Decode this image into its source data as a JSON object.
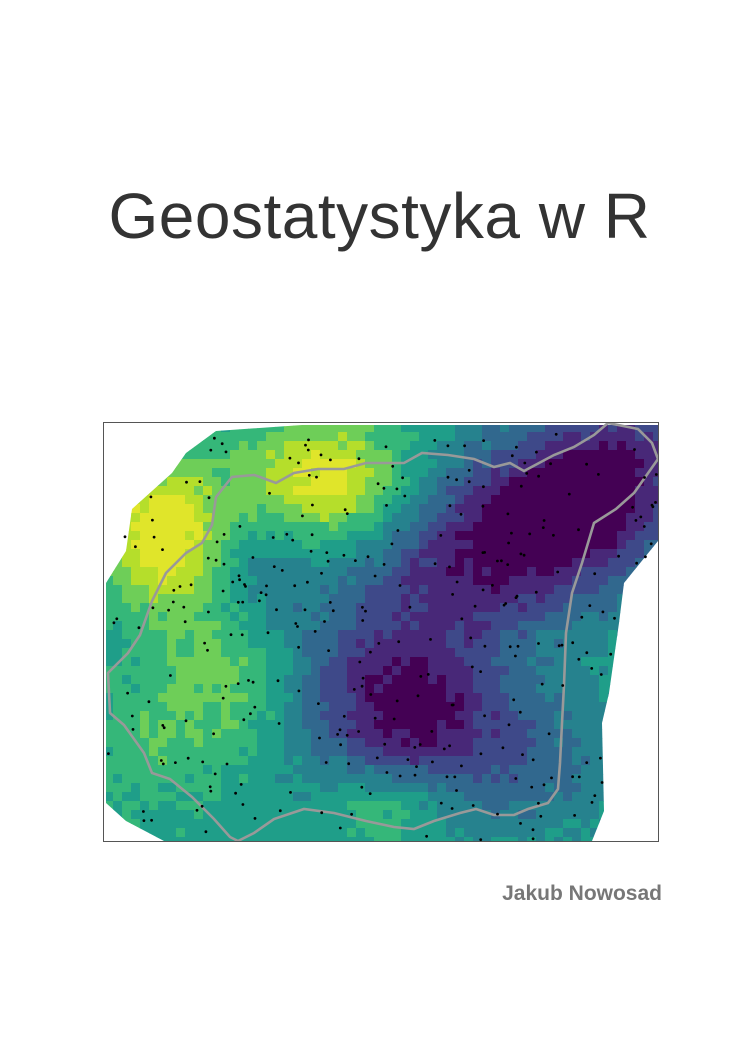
{
  "cover": {
    "title": "Geostatystyka w R",
    "author": "Jakub Nowosad"
  },
  "map": {
    "palette": [
      "#440154",
      "#482878",
      "#3e4989",
      "#31688e",
      "#26828e",
      "#1f9e89",
      "#35b779",
      "#6ece58",
      "#b5de2b",
      "#e0e52a"
    ],
    "boundary_color": "#999999",
    "point_color": "#000000"
  }
}
